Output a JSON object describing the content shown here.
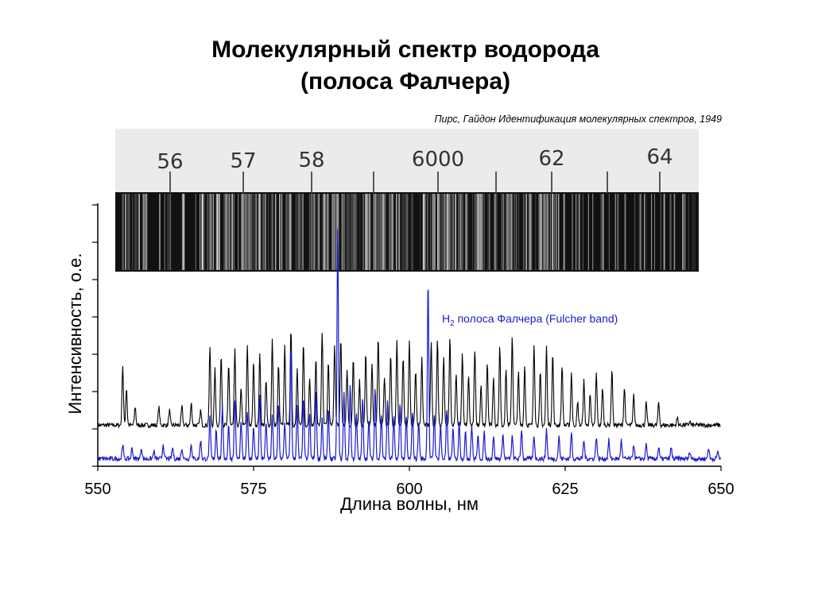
{
  "title": {
    "line1": "Молекулярный спектр водорода",
    "line2": "(полоса Фалчера)"
  },
  "citation": "Пирс, Гайдон Идентификация молекулярных спектров, 1949",
  "plate": {
    "labels": [
      "56",
      "57",
      "58",
      "6000",
      "62",
      "64"
    ]
  },
  "chart_data": {
    "type": "line",
    "xlabel": "Длина волны, нм",
    "ylabel": "Интенсивность, о.е.",
    "xlim": [
      550,
      650
    ],
    "xticks": [
      550,
      575,
      600,
      625,
      650
    ],
    "xtick_labels": [
      "550",
      "575",
      "600",
      "625",
      "650"
    ],
    "ylim": [
      0,
      7
    ],
    "y_tick_count": 8,
    "grid": false,
    "series": [
      {
        "color": "#000000",
        "baseline": 1.1,
        "peaks": [
          [
            554.0,
            1.6
          ],
          [
            554.6,
            1.0
          ],
          [
            556.0,
            0.5
          ],
          [
            559.8,
            0.5
          ],
          [
            561.5,
            0.4
          ],
          [
            563.5,
            0.5
          ],
          [
            565.0,
            0.6
          ],
          [
            566.5,
            0.4
          ],
          [
            568.0,
            2.1
          ],
          [
            568.8,
            1.5
          ],
          [
            569.8,
            1.9
          ],
          [
            571.0,
            1.6
          ],
          [
            572.0,
            2.0
          ],
          [
            573.0,
            1.0
          ],
          [
            574.0,
            2.1
          ],
          [
            575.0,
            1.7
          ],
          [
            576.0,
            1.9
          ],
          [
            577.0,
            1.2
          ],
          [
            578.0,
            2.3
          ],
          [
            579.0,
            1.6
          ],
          [
            580.0,
            2.1
          ],
          [
            581.0,
            2.6
          ],
          [
            582.0,
            1.5
          ],
          [
            583.0,
            2.2
          ],
          [
            584.0,
            1.3
          ],
          [
            585.0,
            1.8
          ],
          [
            586.0,
            2.5
          ],
          [
            587.0,
            1.7
          ],
          [
            588.0,
            2.2
          ],
          [
            589.0,
            2.3
          ],
          [
            590.0,
            1.5
          ],
          [
            591.0,
            1.8
          ],
          [
            592.0,
            1.2
          ],
          [
            593.0,
            1.9
          ],
          [
            594.0,
            1.6
          ],
          [
            595.0,
            2.4
          ],
          [
            596.0,
            1.3
          ],
          [
            597.0,
            1.9
          ],
          [
            598.0,
            2.3
          ],
          [
            599.0,
            1.8
          ],
          [
            600.0,
            2.3
          ],
          [
            601.0,
            1.5
          ],
          [
            602.0,
            1.8
          ],
          [
            603.5,
            2.2
          ],
          [
            604.5,
            2.3
          ],
          [
            605.5,
            1.8
          ],
          [
            606.5,
            2.4
          ],
          [
            607.5,
            1.4
          ],
          [
            608.5,
            1.9
          ],
          [
            609.5,
            1.3
          ],
          [
            610.5,
            2.0
          ],
          [
            611.5,
            1.1
          ],
          [
            612.5,
            1.7
          ],
          [
            613.5,
            1.3
          ],
          [
            614.5,
            2.1
          ],
          [
            615.5,
            1.5
          ],
          [
            616.5,
            2.4
          ],
          [
            617.5,
            1.4
          ],
          [
            618.5,
            1.6
          ],
          [
            620.0,
            2.2
          ],
          [
            621.0,
            1.4
          ],
          [
            622.0,
            2.1
          ],
          [
            623.0,
            1.9
          ],
          [
            624.5,
            1.6
          ],
          [
            626.0,
            1.4
          ],
          [
            627.0,
            0.6
          ],
          [
            628.0,
            1.2
          ],
          [
            629.0,
            0.8
          ],
          [
            630.0,
            1.4
          ],
          [
            631.0,
            1.0
          ],
          [
            632.5,
            1.5
          ],
          [
            634.5,
            1.0
          ],
          [
            636.0,
            0.8
          ],
          [
            638.0,
            0.6
          ],
          [
            640.0,
            0.6
          ],
          [
            643.0,
            0.2
          ],
          [
            645.0,
            0.1
          ]
        ]
      },
      {
        "color": "#1a1ad0",
        "baseline": 0.2,
        "peaks": [
          [
            554.0,
            0.4
          ],
          [
            555.5,
            0.3
          ],
          [
            557.0,
            0.3
          ],
          [
            559.0,
            0.2
          ],
          [
            560.5,
            0.4
          ],
          [
            562.0,
            0.3
          ],
          [
            563.5,
            0.3
          ],
          [
            565.0,
            0.4
          ],
          [
            566.5,
            0.5
          ],
          [
            568.0,
            1.1
          ],
          [
            569.0,
            0.8
          ],
          [
            570.0,
            1.4
          ],
          [
            571.0,
            0.9
          ],
          [
            572.0,
            1.6
          ],
          [
            573.0,
            1.0
          ],
          [
            574.0,
            1.3
          ],
          [
            575.0,
            0.9
          ],
          [
            576.0,
            1.7
          ],
          [
            577.0,
            1.0
          ],
          [
            578.0,
            1.2
          ],
          [
            579.0,
            1.5
          ],
          [
            580.0,
            1.0
          ],
          [
            581.0,
            3.0
          ],
          [
            582.0,
            1.4
          ],
          [
            583.0,
            1.6
          ],
          [
            584.0,
            1.2
          ],
          [
            585.0,
            1.9
          ],
          [
            586.0,
            1.1
          ],
          [
            587.0,
            1.3
          ],
          [
            588.5,
            6.2
          ],
          [
            589.5,
            1.8
          ],
          [
            590.5,
            2.0
          ],
          [
            591.5,
            1.2
          ],
          [
            592.5,
            1.6
          ],
          [
            593.5,
            1.0
          ],
          [
            594.5,
            1.9
          ],
          [
            595.5,
            1.2
          ],
          [
            596.5,
            1.6
          ],
          [
            597.5,
            1.1
          ],
          [
            598.5,
            1.5
          ],
          [
            599.5,
            1.1
          ],
          [
            600.5,
            1.3
          ],
          [
            601.5,
            1.0
          ],
          [
            603.0,
            4.8
          ],
          [
            604.0,
            1.2
          ],
          [
            605.0,
            0.9
          ],
          [
            606.0,
            1.3
          ],
          [
            607.0,
            0.8
          ],
          [
            608.0,
            1.0
          ],
          [
            609.0,
            0.7
          ],
          [
            610.0,
            0.9
          ],
          [
            611.0,
            0.6
          ],
          [
            612.0,
            0.7
          ],
          [
            613.5,
            0.6
          ],
          [
            615.0,
            0.7
          ],
          [
            616.5,
            0.6
          ],
          [
            618.0,
            0.8
          ],
          [
            620.0,
            0.6
          ],
          [
            622.0,
            0.8
          ],
          [
            624.0,
            0.6
          ],
          [
            626.0,
            0.7
          ],
          [
            628.0,
            0.5
          ],
          [
            630.0,
            0.6
          ],
          [
            632.0,
            0.5
          ],
          [
            634.0,
            0.5
          ],
          [
            636.0,
            0.4
          ],
          [
            638.0,
            0.4
          ],
          [
            640.0,
            0.3
          ],
          [
            642.0,
            0.3
          ],
          [
            645.0,
            0.2
          ],
          [
            648.0,
            0.3
          ],
          [
            649.5,
            0.2
          ]
        ]
      }
    ],
    "annotations": [
      {
        "prefix": "H",
        "subscript": "2",
        "text": " полоса Фалчера (Fulcher band)",
        "color": "#1a1ad0",
        "x": 612,
        "y": 4.0
      }
    ]
  }
}
